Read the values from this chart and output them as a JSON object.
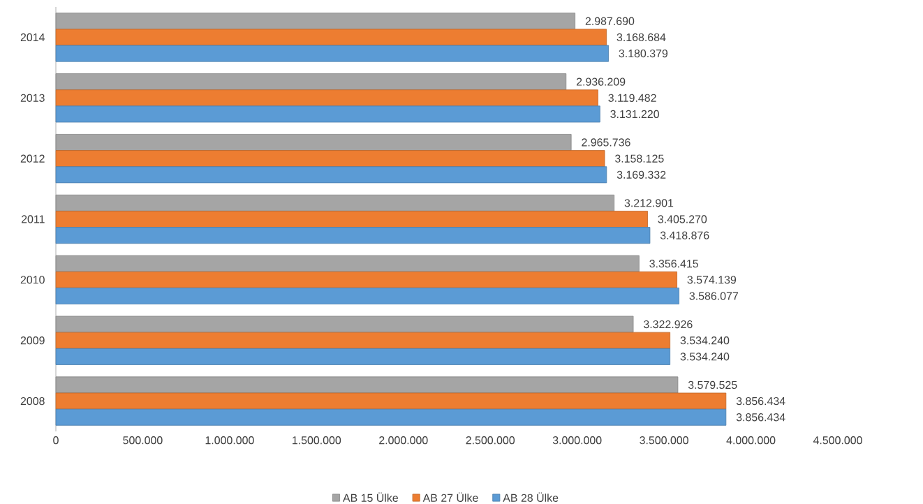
{
  "chart_data": {
    "type": "bar",
    "orientation": "horizontal",
    "categories": [
      "2014",
      "2013",
      "2012",
      "2011",
      "2010",
      "2009",
      "2008"
    ],
    "series": [
      {
        "name": "AB 15 Ülke",
        "color": "#a5a5a5",
        "values": [
          2987690,
          2936209,
          2965736,
          3212901,
          3356415,
          3322926,
          3579525
        ],
        "value_labels": [
          "2.987.690",
          "2.936.209",
          "2.965.736",
          "3.212.901",
          "3.356.415",
          "3.322.926",
          "3.579.525"
        ]
      },
      {
        "name": "AB 27 Ülke",
        "color": "#ed7d31",
        "values": [
          3168684,
          3119482,
          3158125,
          3405270,
          3574139,
          3534240,
          3856434
        ],
        "value_labels": [
          "3.168.684",
          "3.119.482",
          "3.158.125",
          "3.405.270",
          "3.574.139",
          "3.534.240",
          "3.856.434"
        ]
      },
      {
        "name": "AB 28 Ülke",
        "color": "#5b9bd5",
        "values": [
          3180379,
          3131220,
          3169332,
          3418876,
          3586077,
          3534240,
          3856434
        ],
        "value_labels": [
          "3.180.379",
          "3.131.220",
          "3.169.332",
          "3.418.876",
          "3.586.077",
          "3.534.240",
          "3.856.434"
        ]
      }
    ],
    "xlim": [
      0,
      4500000
    ],
    "xticks": [
      0,
      {
        "value": 500000,
        "label": "500.000"
      },
      {
        "value": 1000000,
        "label": "1.000.000"
      },
      {
        "value": 1500000,
        "label": "1.500.000"
      },
      {
        "value": 2000000,
        "label": "2.000.000"
      },
      {
        "value": 2500000,
        "label": "2.500.000"
      },
      {
        "value": 3000000,
        "label": "3.000.000"
      },
      {
        "value": 3500000,
        "label": "3.500.000"
      },
      {
        "value": 4000000,
        "label": "4.000.000"
      },
      {
        "value": 4500000,
        "label": "4.500.000"
      }
    ],
    "grid": false,
    "legend": "bottom"
  }
}
